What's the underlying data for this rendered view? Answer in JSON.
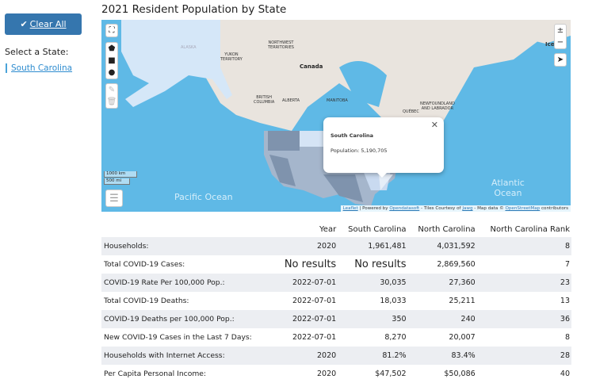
{
  "sidebar": {
    "clear_all": "Clear All",
    "select_label": "Select a State:",
    "selected_state": "South Carolina"
  },
  "title": "2021 Resident Population by State",
  "map": {
    "labels": {
      "alaska": "ALASKA",
      "yukon": "YUKON\nTERRITORY",
      "nwt": "NORTHWEST\nTERRITORIES",
      "canada": "Canada",
      "bc": "BRITISH\nCOLUMBIA",
      "alberta": "ALBERTA",
      "manitoba": "MANITOBA",
      "quebec": "QUÉBEC",
      "nl": "NEWFOUNDLAND\nAND LABRADOR",
      "iceland": "Icel",
      "pacific": "Pacific Ocean",
      "atlantic": "Atlantic\nOcean"
    },
    "popup": {
      "title": "South Carolina",
      "population_label": "Population:",
      "population": "5,190,705"
    },
    "scale": {
      "km": "1000 km",
      "mi": "500 mi"
    },
    "attribution": {
      "leaflet": "Leaflet",
      "powered": " | Powered by ",
      "ods": "Opendatasoft",
      "tiles": " - Tiles Courtesy of ",
      "jawg": "Jawg",
      "mapdata": " - Map data © ",
      "osm": "OpenStreetMap",
      "contrib": " contributors"
    },
    "colors": {
      "ocean": "#5fb9e6",
      "land": "#e9e4de",
      "state_dark": "#7f93ad",
      "state_light": "#c9daf0"
    }
  },
  "table": {
    "headers": [
      "",
      "Year",
      "South Carolina",
      "North Carolina",
      "North Carolina Rank"
    ],
    "rows": [
      [
        "Households:",
        "2020",
        "1,961,481",
        "4,031,592",
        "8"
      ],
      [
        "Total COVID-19 Cases:",
        "No results",
        "No results",
        "2,869,560",
        "7"
      ],
      [
        "COVID-19 Rate Per 100,000 Pop.:",
        "2022-07-01",
        "30,035",
        "27,360",
        "23"
      ],
      [
        "Total COVID-19 Deaths:",
        "2022-07-01",
        "18,033",
        "25,211",
        "13"
      ],
      [
        "COVID-19 Deaths per 100,000 Pop.:",
        "2022-07-01",
        "350",
        "240",
        "36"
      ],
      [
        "New COVID-19 Cases in the Last 7 Days:",
        "2022-07-01",
        "8,270",
        "20,007",
        "8"
      ],
      [
        "Households with Internet Access:",
        "2020",
        "81.2%",
        "83.4%",
        "28"
      ],
      [
        "Per Capita Personal Income:",
        "2020",
        "$47,502",
        "$50,086",
        "40"
      ]
    ]
  }
}
